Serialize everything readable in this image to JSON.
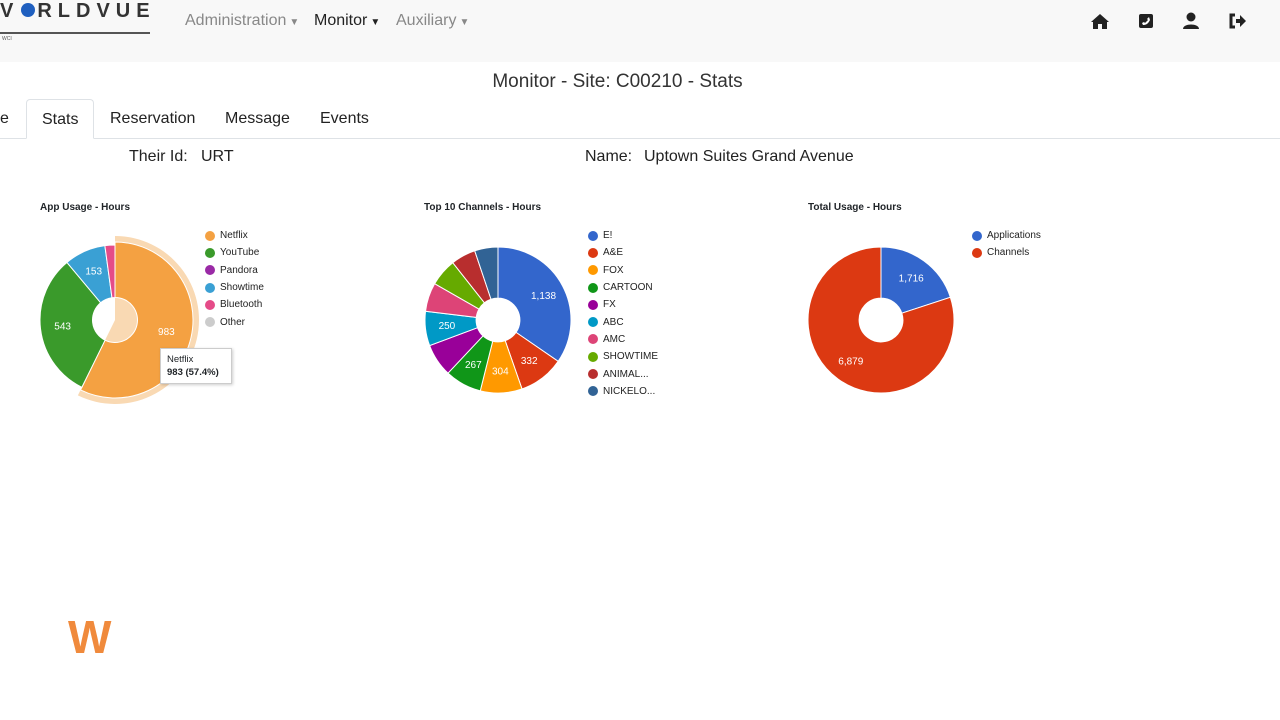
{
  "nav": {
    "logo": "WORLDVUE",
    "logo_sub": "WCI",
    "menus": [
      {
        "label": "Administration"
      },
      {
        "label": "Monitor"
      },
      {
        "label": "Auxiliary"
      }
    ],
    "icons": [
      "home-icon",
      "phone-square-icon",
      "user-icon",
      "sign-out-icon"
    ]
  },
  "page": {
    "title": "Monitor - Site: C00210 - Stats"
  },
  "tabs": [
    {
      "label": "e"
    },
    {
      "label": "Stats"
    },
    {
      "label": "Reservation"
    },
    {
      "label": "Message"
    },
    {
      "label": "Events"
    }
  ],
  "info": {
    "their_id_label": "Their Id:",
    "their_id": "URT",
    "name_label": "Name:",
    "name": "Uptown Suites Grand Avenue"
  },
  "tooltip": {
    "title": "Netflix",
    "value": "983 (57.4%)"
  },
  "watermark": "W",
  "chart_data": [
    {
      "type": "pie",
      "title": "App Usage - Hours",
      "donut": true,
      "legend": "right",
      "categories": [
        "Netflix",
        "YouTube",
        "Pandora",
        "Showtime",
        "Bluetooth",
        "Other"
      ],
      "values": [
        983,
        543,
        0,
        153,
        37,
        0
      ],
      "labels": [
        "983",
        "543",
        "",
        "153",
        "",
        ""
      ],
      "colors": [
        "#f4a142",
        "#3a9a2b",
        "#9a2aa6",
        "#3aa0d4",
        "#e54b88",
        "#cccccc"
      ]
    },
    {
      "type": "pie",
      "title": "Top 10 Channels - Hours",
      "donut": true,
      "legend": "right",
      "categories": [
        "E!",
        "A&E",
        "FOX",
        "CARTOON",
        "FX",
        "ABC",
        "AMC",
        "SHOWTIME",
        "ANIMAL...",
        "NICKELO..."
      ],
      "values": [
        1138,
        332,
        304,
        267,
        240,
        250,
        210,
        200,
        180,
        170
      ],
      "labels": [
        "1,138",
        "332",
        "304",
        "267",
        "",
        "250",
        "",
        "",
        "",
        ""
      ],
      "colors": [
        "#3366cc",
        "#dc3912",
        "#ff9900",
        "#109618",
        "#990099",
        "#0099c6",
        "#dd4477",
        "#66aa00",
        "#b82e2e",
        "#316395"
      ]
    },
    {
      "type": "pie",
      "title": "Total Usage - Hours",
      "donut": true,
      "legend": "right",
      "categories": [
        "Applications",
        "Channels"
      ],
      "values": [
        1716,
        6879
      ],
      "labels": [
        "1,716",
        "6,879"
      ],
      "colors": [
        "#3366cc",
        "#dc3912"
      ]
    }
  ]
}
